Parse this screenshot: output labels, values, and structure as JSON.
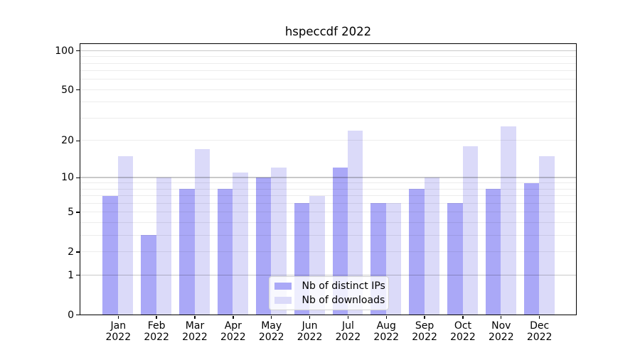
{
  "chart_data": {
    "type": "bar",
    "title": "hspeccdf 2022",
    "categories": [
      {
        "month": "Jan",
        "year": "2022"
      },
      {
        "month": "Feb",
        "year": "2022"
      },
      {
        "month": "Mar",
        "year": "2022"
      },
      {
        "month": "Apr",
        "year": "2022"
      },
      {
        "month": "May",
        "year": "2022"
      },
      {
        "month": "Jun",
        "year": "2022"
      },
      {
        "month": "Jul",
        "year": "2022"
      },
      {
        "month": "Aug",
        "year": "2022"
      },
      {
        "month": "Sep",
        "year": "2022"
      },
      {
        "month": "Oct",
        "year": "2022"
      },
      {
        "month": "Nov",
        "year": "2022"
      },
      {
        "month": "Dec",
        "year": "2022"
      }
    ],
    "series": [
      {
        "name": "Nb of distinct IPs",
        "color": "#aaa8f7",
        "values": [
          7,
          3,
          8,
          8,
          10,
          6,
          12,
          6,
          8,
          6,
          8,
          9
        ]
      },
      {
        "name": "Nb of downloads",
        "color": "#dbdaf9",
        "values": [
          15,
          10,
          17,
          11,
          12,
          7,
          24,
          6,
          10,
          18,
          26,
          15
        ]
      }
    ],
    "y_axis": {
      "scale": "log1p",
      "tick_labels": [
        "0",
        "1",
        "2",
        "5",
        "10",
        "20",
        "50",
        "100"
      ],
      "tick_values": [
        0,
        1,
        2,
        5,
        10,
        20,
        50,
        100
      ],
      "major_gridline_values": [
        1,
        10,
        100
      ],
      "minor_gridline_values": [
        2,
        3,
        4,
        5,
        6,
        7,
        8,
        9,
        20,
        30,
        40,
        50,
        60,
        70,
        80,
        90
      ],
      "ylim": [
        0,
        112
      ]
    },
    "legend_position": "lower-center",
    "grid": true
  }
}
